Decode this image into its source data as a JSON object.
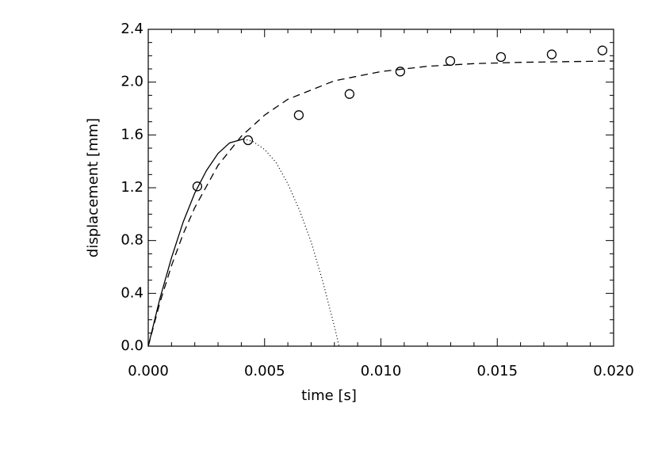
{
  "chart_data": {
    "type": "line",
    "xlabel": "time [s]",
    "ylabel": "displacement [mm]",
    "xlim": [
      0,
      0.02
    ],
    "ylim": [
      0,
      2.4
    ],
    "xticks": [
      {
        "value": 0,
        "label": "0.000"
      },
      {
        "value": 0.005,
        "label": "0.005"
      },
      {
        "value": 0.01,
        "label": "0.010"
      },
      {
        "value": 0.015,
        "label": "0.015"
      },
      {
        "value": 0.02,
        "label": "0.020"
      }
    ],
    "yticks": [
      {
        "value": 0,
        "label": "0.0"
      },
      0.4,
      0.8,
      1.2,
      1.6,
      {
        "value": 2,
        "label": "2.0"
      },
      2.4
    ],
    "xminorticks": [
      0.001,
      0.002,
      0.003,
      0.004,
      0.006,
      0.007,
      0.008,
      0.009,
      0.011,
      0.012,
      0.013,
      0.014,
      0.016,
      0.017,
      0.018,
      0.019
    ],
    "yminorticks": [
      0.1,
      0.2,
      0.3,
      0.5,
      0.6,
      0.7,
      0.9,
      1.0,
      1.1,
      1.3,
      1.4,
      1.5,
      1.7,
      1.8,
      1.9,
      2.1,
      2.2,
      2.3
    ],
    "series": [
      {
        "style": "circle",
        "color": "#000000",
        "x": [
          0.00211,
          0.00429,
          0.00647,
          0.00865,
          0.01083,
          0.01298,
          0.01516,
          0.01734,
          0.01952
        ],
        "values": [
          1.21,
          1.56,
          1.75,
          1.91,
          2.08,
          2.16,
          2.19,
          2.21,
          2.24
        ]
      },
      {
        "style": "solid",
        "color": "#000000",
        "x": [
          0,
          0.0005,
          0.001,
          0.0015,
          0.002,
          0.0025,
          0.003,
          0.0035,
          0.0041
        ],
        "values": [
          0,
          0.36,
          0.67,
          0.94,
          1.16,
          1.33,
          1.46,
          1.54,
          1.57
        ]
      },
      {
        "style": "dotted",
        "color": "#000000",
        "x": [
          0.0041,
          0.0045,
          0.005,
          0.0055,
          0.006,
          0.0065,
          0.007,
          0.0075,
          0.008,
          0.0082
        ],
        "values": [
          1.57,
          1.55,
          1.49,
          1.39,
          1.23,
          1.03,
          0.79,
          0.49,
          0.15,
          0
        ]
      },
      {
        "style": "dashed",
        "color": "#000000",
        "x": [
          0,
          0.0005,
          0.001,
          0.0015,
          0.002,
          0.003,
          0.004,
          0.005,
          0.006,
          0.008,
          0.01,
          0.012,
          0.014,
          0.016,
          0.018,
          0.02
        ],
        "values": [
          0,
          0.33,
          0.61,
          0.85,
          1.05,
          1.37,
          1.59,
          1.75,
          1.87,
          2.01,
          2.08,
          2.12,
          2.14,
          2.15,
          2.155,
          2.16
        ]
      }
    ]
  }
}
